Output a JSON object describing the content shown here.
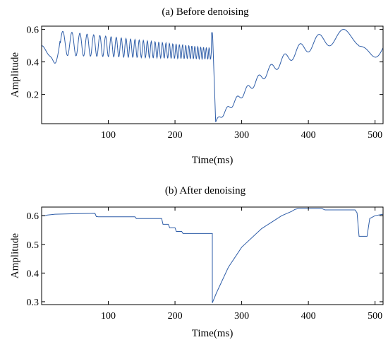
{
  "chart_data": [
    {
      "type": "line",
      "title": "(a)  Before denoising",
      "xlabel": "Time(ms)",
      "ylabel": "Amplitude",
      "xlim": [
        0,
        512
      ],
      "ylim": [
        0.02,
        0.62
      ],
      "xticks": [
        100,
        200,
        300,
        400,
        500
      ],
      "yticks": [
        0.2,
        0.4,
        0.6
      ],
      "ytick_labels": [
        "0.2",
        "0.4",
        "0.6"
      ],
      "grid": false,
      "line_color": "#2e5da8",
      "description_points": [
        {
          "x": 0,
          "y": 0.5
        },
        {
          "x": 10,
          "y": 0.48
        },
        {
          "x": 20,
          "y": 0.39
        },
        {
          "x": 30,
          "y": 0.58
        },
        {
          "x": 60,
          "y": 0.5
        },
        {
          "x": 150,
          "y": 0.48
        },
        {
          "x": 250,
          "y": 0.45
        },
        {
          "x": 255,
          "y": 0.58
        },
        {
          "x": 256,
          "y": 0.18
        },
        {
          "x": 260,
          "y": 0.03
        },
        {
          "x": 280,
          "y": 0.12
        },
        {
          "x": 320,
          "y": 0.3
        },
        {
          "x": 360,
          "y": 0.45
        },
        {
          "x": 400,
          "y": 0.52
        },
        {
          "x": 440,
          "y": 0.56
        },
        {
          "x": 470,
          "y": 0.52
        },
        {
          "x": 495,
          "y": 0.4
        },
        {
          "x": 512,
          "y": 0.44
        }
      ]
    },
    {
      "type": "line",
      "title": "(b)  After denoising",
      "xlabel": "Time(ms)",
      "ylabel": "Amplitude",
      "xlim": [
        0,
        512
      ],
      "ylim": [
        0.29,
        0.63
      ],
      "xticks": [
        100,
        200,
        300,
        400,
        500
      ],
      "yticks": [
        0.3,
        0.4,
        0.5,
        0.6
      ],
      "ytick_labels": [
        "0.3",
        "0.4",
        "0.5",
        "0.6"
      ],
      "grid": false,
      "line_color": "#2e5da8",
      "x": [
        0,
        5,
        8,
        20,
        50,
        80,
        82,
        85,
        140,
        142,
        180,
        182,
        190,
        192,
        200,
        202,
        210,
        212,
        256,
        256,
        262,
        280,
        300,
        330,
        360,
        375,
        380,
        385,
        420,
        425,
        470,
        473,
        476,
        488,
        492,
        500,
        512
      ],
      "y": [
        0.6,
        0.6,
        0.602,
        0.605,
        0.607,
        0.608,
        0.597,
        0.596,
        0.596,
        0.59,
        0.59,
        0.57,
        0.57,
        0.558,
        0.558,
        0.545,
        0.545,
        0.538,
        0.538,
        0.296,
        0.33,
        0.42,
        0.49,
        0.555,
        0.6,
        0.615,
        0.622,
        0.625,
        0.625,
        0.62,
        0.62,
        0.61,
        0.528,
        0.528,
        0.59,
        0.6,
        0.605
      ]
    }
  ]
}
